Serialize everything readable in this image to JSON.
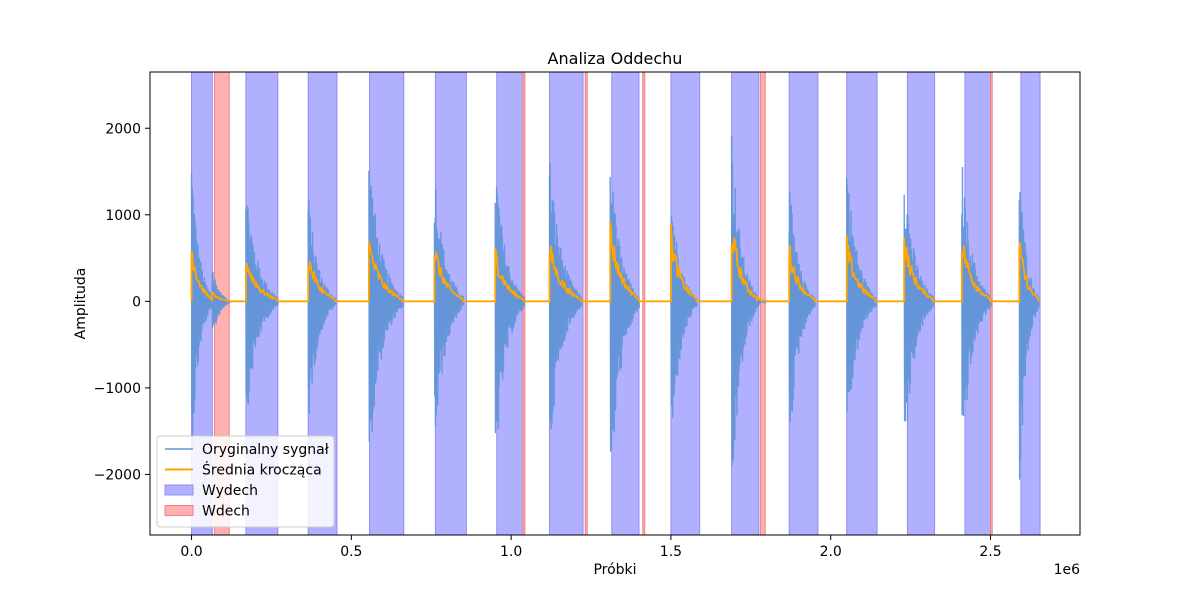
{
  "chart_data": {
    "type": "line",
    "title": "Analiza Oddechu",
    "xlabel": "Próbki",
    "ylabel": "Amplituda",
    "x_offset_label": "1e6",
    "xlim": [
      -0.13,
      2.78
    ],
    "ylim": [
      -2700,
      2650
    ],
    "x_ticks": [
      0.0,
      0.5,
      1.0,
      1.5,
      2.0,
      2.5
    ],
    "x_tick_labels": [
      "0.0",
      "0.5",
      "1.0",
      "1.5",
      "2.0",
      "2.5"
    ],
    "y_ticks": [
      -2000,
      -1000,
      0,
      1000,
      2000
    ],
    "y_tick_labels": [
      "−2000",
      "−1000",
      "0",
      "1000",
      "2000"
    ],
    "grid": false,
    "legend_position": "lower-left",
    "colors": {
      "signal": "#6495d8",
      "moving_average": "#ffa500",
      "exhale_fill": "#b0b0ff",
      "exhale_edge": "#8f8fef",
      "inhale_fill": "#ffb0b0",
      "inhale_edge": "#f08080"
    },
    "series": [
      {
        "name": "Oryginalny sygnał",
        "bursts": [
          {
            "start": 0.0,
            "end": 0.065,
            "peak_pos": 1750,
            "peak_neg": -1850
          },
          {
            "start": 0.065,
            "end": 0.12,
            "peak_pos": 450,
            "peak_neg": -500
          },
          {
            "start": 0.17,
            "end": 0.27,
            "peak_pos": 1450,
            "peak_neg": -1450
          },
          {
            "start": 0.365,
            "end": 0.45,
            "peak_pos": 1300,
            "peak_neg": -1450
          },
          {
            "start": 0.555,
            "end": 0.66,
            "peak_pos": 1800,
            "peak_neg": -1950
          },
          {
            "start": 0.76,
            "end": 0.85,
            "peak_pos": 1630,
            "peak_neg": -1800
          },
          {
            "start": 0.95,
            "end": 1.04,
            "peak_pos": 1750,
            "peak_neg": -2050
          },
          {
            "start": 1.12,
            "end": 1.22,
            "peak_pos": 1800,
            "peak_neg": -1800
          },
          {
            "start": 1.31,
            "end": 1.4,
            "peak_pos": 1750,
            "peak_neg": -2350
          },
          {
            "start": 1.5,
            "end": 1.58,
            "peak_pos": 1400,
            "peak_neg": -1850
          },
          {
            "start": 1.69,
            "end": 1.77,
            "peak_pos": 2050,
            "peak_neg": -2450
          },
          {
            "start": 1.77,
            "end": 1.8,
            "peak_pos": 80,
            "peak_neg": -80
          },
          {
            "start": 1.87,
            "end": 1.95,
            "peak_pos": 1430,
            "peak_neg": -1800
          },
          {
            "start": 2.05,
            "end": 2.14,
            "peak_pos": 1700,
            "peak_neg": -1700
          },
          {
            "start": 2.23,
            "end": 2.32,
            "peak_pos": 1650,
            "peak_neg": -1900
          },
          {
            "start": 2.41,
            "end": 2.5,
            "peak_pos": 1700,
            "peak_neg": -1950
          },
          {
            "start": 2.59,
            "end": 2.65,
            "peak_pos": 1700,
            "peak_neg": -2300
          }
        ]
      },
      {
        "name": "Średnia krocząca",
        "bursts": [
          {
            "start": 0.0,
            "end": 0.065,
            "peak": 750
          },
          {
            "start": 0.065,
            "end": 0.12,
            "peak": 120
          },
          {
            "start": 0.17,
            "end": 0.27,
            "peak": 580
          },
          {
            "start": 0.365,
            "end": 0.45,
            "peak": 620
          },
          {
            "start": 0.555,
            "end": 0.66,
            "peak": 780
          },
          {
            "start": 0.76,
            "end": 0.85,
            "peak": 730
          },
          {
            "start": 0.95,
            "end": 1.04,
            "peak": 670
          },
          {
            "start": 1.12,
            "end": 1.22,
            "peak": 750
          },
          {
            "start": 1.31,
            "end": 1.4,
            "peak": 980
          },
          {
            "start": 1.5,
            "end": 1.58,
            "peak": 900
          },
          {
            "start": 1.69,
            "end": 1.77,
            "peak": 1020
          },
          {
            "start": 1.77,
            "end": 1.8,
            "peak": 50
          },
          {
            "start": 1.87,
            "end": 1.95,
            "peak": 720
          },
          {
            "start": 2.05,
            "end": 2.14,
            "peak": 780
          },
          {
            "start": 2.23,
            "end": 2.32,
            "peak": 830
          },
          {
            "start": 2.41,
            "end": 2.5,
            "peak": 850
          },
          {
            "start": 2.59,
            "end": 2.65,
            "peak": 790
          }
        ]
      }
    ],
    "exhale_regions": {
      "name": "Wydech",
      "intervals": [
        [
          0.0,
          0.065
        ],
        [
          0.17,
          0.27
        ],
        [
          0.365,
          0.455
        ],
        [
          0.557,
          0.664
        ],
        [
          0.763,
          0.86
        ],
        [
          0.955,
          1.04
        ],
        [
          1.12,
          1.225
        ],
        [
          1.315,
          1.4
        ],
        [
          1.5,
          1.59
        ],
        [
          1.69,
          1.775
        ],
        [
          1.87,
          1.96
        ],
        [
          2.05,
          2.145
        ],
        [
          2.24,
          2.325
        ],
        [
          2.42,
          2.505
        ],
        [
          2.595,
          2.655
        ]
      ]
    },
    "inhale_regions": {
      "name": "Wdech",
      "intervals": [
        [
          0.072,
          0.118
        ],
        [
          1.037,
          1.043
        ],
        [
          1.232,
          1.238
        ],
        [
          1.412,
          1.418
        ],
        [
          1.78,
          1.795
        ],
        [
          2.5,
          2.505
        ]
      ]
    },
    "legend": [
      {
        "label": "Oryginalny sygnał",
        "kind": "line",
        "color": "#6495d8"
      },
      {
        "label": "Średnia krocząca",
        "kind": "line",
        "color": "#ffa500"
      },
      {
        "label": "Wydech",
        "kind": "patch",
        "color": "#b0b0ff"
      },
      {
        "label": "Wdech",
        "kind": "patch",
        "color": "#ffb0b0"
      }
    ]
  }
}
